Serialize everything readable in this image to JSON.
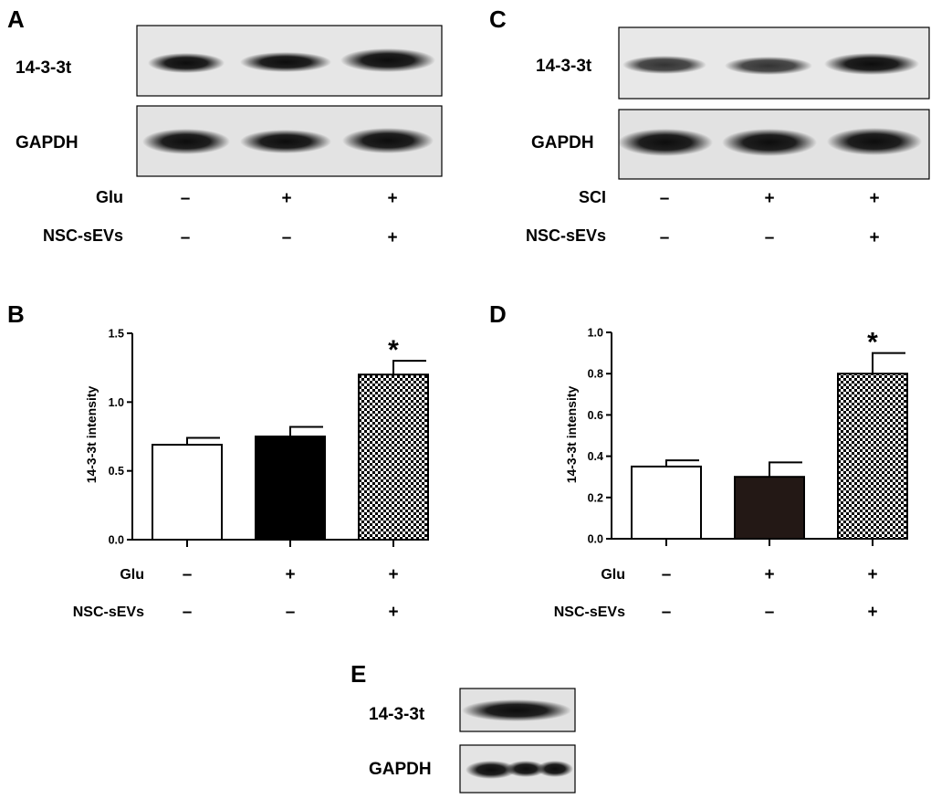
{
  "panels": {
    "A": {
      "letter": "A",
      "rows": [
        "14-3-3t",
        "GAPDH"
      ],
      "conditions": [
        {
          "label": "Glu",
          "signs": [
            "–",
            "+",
            "+"
          ]
        },
        {
          "label": "NSC-sEVs",
          "signs": [
            "–",
            "–",
            "+"
          ]
        }
      ]
    },
    "C": {
      "letter": "C",
      "rows": [
        "14-3-3t",
        "GAPDH"
      ],
      "conditions": [
        {
          "label": "SCI",
          "signs": [
            "–",
            "+",
            "+"
          ]
        },
        {
          "label": "NSC-sEVs",
          "signs": [
            "–",
            "–",
            "+"
          ]
        }
      ]
    },
    "E": {
      "letter": "E",
      "rows": [
        "14-3-3t",
        "GAPDH"
      ]
    }
  },
  "chart_data": [
    {
      "panel": "B",
      "letter": "B",
      "type": "bar",
      "ylabel": "14-3-3t intensity",
      "ylim": [
        0,
        1.5
      ],
      "yticks": [
        "0.0",
        "0.5",
        "1.0",
        "1.5"
      ],
      "values": [
        0.69,
        0.75,
        1.2
      ],
      "errors": [
        0.05,
        0.07,
        0.1
      ],
      "fills": [
        "white",
        "black",
        "checker"
      ],
      "significance": [
        "",
        "",
        "*"
      ],
      "conditions": [
        {
          "label": "Glu",
          "signs": [
            "–",
            "+",
            "+"
          ]
        },
        {
          "label": "NSC-sEVs",
          "signs": [
            "–",
            "–",
            "+"
          ]
        }
      ]
    },
    {
      "panel": "D",
      "letter": "D",
      "type": "bar",
      "ylabel": "14-3-3t intensity",
      "ylim": [
        0,
        1.0
      ],
      "yticks": [
        "0.0",
        "0.2",
        "0.4",
        "0.6",
        "0.8",
        "1.0"
      ],
      "values": [
        0.35,
        0.3,
        0.8
      ],
      "errors": [
        0.03,
        0.07,
        0.1
      ],
      "fills": [
        "white",
        "#231815",
        "checker"
      ],
      "significance": [
        "",
        "",
        "*"
      ],
      "conditions": [
        {
          "label": "Glu",
          "signs": [
            "–",
            "+",
            "+"
          ]
        },
        {
          "label": "NSC-sEVs",
          "signs": [
            "–",
            "–",
            "+"
          ]
        }
      ]
    }
  ]
}
